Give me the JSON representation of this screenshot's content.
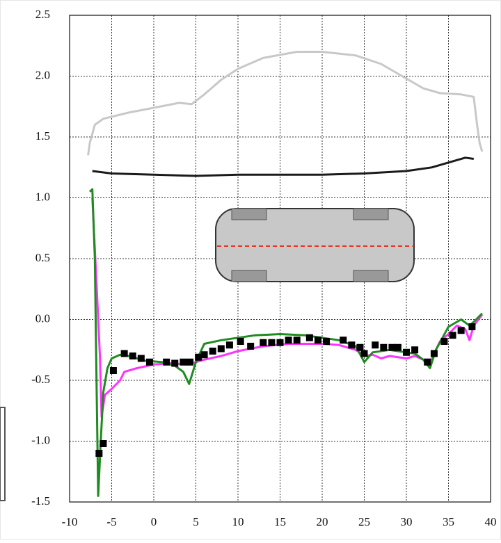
{
  "chart_data": {
    "type": "line",
    "xlim": [
      -10,
      40
    ],
    "xticks": [
      -10,
      -5,
      0,
      5,
      10,
      15,
      20,
      25,
      30,
      35,
      40
    ],
    "ylim": [
      -1.5,
      2.5
    ],
    "yticks": [
      -1.5,
      {
        "value": -1,
        "label": "-1.0"
      },
      -0.5,
      {
        "value": 0,
        "label": "0.0"
      },
      0.5,
      {
        "value": 1,
        "label": "1.0"
      },
      1.5,
      {
        "value": 2,
        "label": "2.0"
      },
      2.5
    ],
    "grid": true,
    "series": [
      {
        "color": "#c8c8c8",
        "style": "line",
        "x": [
          -7.8,
          -7.6,
          -7,
          -6,
          -3,
          0,
          3,
          4.5,
          6,
          8,
          10,
          13,
          17,
          20,
          24,
          27,
          30,
          32,
          34,
          36.5,
          38,
          38.4,
          38.7,
          39
        ],
        "values": [
          1.35,
          1.45,
          1.6,
          1.65,
          1.7,
          1.74,
          1.78,
          1.77,
          1.85,
          1.97,
          2.06,
          2.15,
          2.2,
          2.2,
          2.17,
          2.1,
          1.98,
          1.9,
          1.86,
          1.85,
          1.83,
          1.6,
          1.45,
          1.38
        ]
      },
      {
        "color": "#1a1a1a",
        "style": "line",
        "x": [
          -7.3,
          -5,
          0,
          5,
          10,
          15,
          20,
          25,
          30,
          33,
          35,
          37,
          38
        ],
        "values": [
          1.22,
          1.2,
          1.19,
          1.18,
          1.19,
          1.19,
          1.19,
          1.2,
          1.22,
          1.25,
          1.29,
          1.33,
          1.32
        ]
      },
      {
        "color": "#ff33ff",
        "style": "line",
        "x": [
          -7.3,
          -6.8,
          -6.4,
          -6.2,
          -5.8,
          -5,
          -4,
          -3.5,
          -2,
          0,
          2,
          4,
          6,
          8,
          10,
          13,
          16,
          20,
          22,
          24,
          25,
          26,
          27,
          28,
          30,
          31,
          32,
          33,
          33.5,
          34,
          35,
          36,
          37,
          37.5,
          38,
          39
        ],
        "values": [
          1.0,
          0.3,
          -0.3,
          -0.8,
          -0.62,
          -0.57,
          -0.5,
          -0.43,
          -0.4,
          -0.37,
          -0.36,
          -0.37,
          -0.33,
          -0.3,
          -0.26,
          -0.22,
          -0.2,
          -0.2,
          -0.21,
          -0.25,
          -0.3,
          -0.29,
          -0.32,
          -0.3,
          -0.32,
          -0.3,
          -0.33,
          -0.33,
          -0.25,
          -0.18,
          -0.12,
          -0.05,
          -0.08,
          -0.17,
          -0.05,
          0.04
        ]
      },
      {
        "color": "#1e8c1e",
        "style": "line",
        "x": [
          -7.6,
          -7.3,
          -7.0,
          -6.8,
          -6.6,
          -6.3,
          -6.0,
          -5.5,
          -5,
          -4,
          -3,
          -1,
          1,
          2.5,
          3.5,
          4.2,
          5,
          6,
          8,
          10,
          12,
          15,
          18,
          20,
          22,
          24,
          25,
          26,
          28,
          30,
          31,
          32,
          32.8,
          33.5,
          35,
          36.5,
          37.5,
          38,
          39
        ],
        "values": [
          1.05,
          1.07,
          0.5,
          -0.5,
          -1.45,
          -1.0,
          -0.6,
          -0.4,
          -0.32,
          -0.29,
          -0.3,
          -0.34,
          -0.35,
          -0.38,
          -0.43,
          -0.53,
          -0.35,
          -0.2,
          -0.17,
          -0.15,
          -0.13,
          -0.12,
          -0.13,
          -0.15,
          -0.17,
          -0.22,
          -0.35,
          -0.27,
          -0.25,
          -0.27,
          -0.28,
          -0.33,
          -0.4,
          -0.25,
          -0.06,
          0.0,
          -0.05,
          -0.02,
          0.05
        ]
      },
      {
        "color": "#000000",
        "style": "square",
        "x": [
          -6.5,
          -6,
          -4.8,
          -3.5,
          -2.5,
          -1.5,
          -0.5,
          1.5,
          2.5,
          3.5,
          4.3,
          5.3,
          6,
          7,
          8,
          9,
          10.3,
          11.5,
          13,
          14,
          15,
          16,
          17,
          18.5,
          19.5,
          20.5,
          22.5,
          23.5,
          24.5,
          25,
          26.3,
          27.3,
          28.3,
          29,
          30,
          31,
          32.5,
          33.3,
          34.5,
          35.5,
          36.5,
          37.8
        ],
        "values": [
          -1.1,
          -1.02,
          -0.42,
          -0.28,
          -0.3,
          -0.32,
          -0.35,
          -0.35,
          -0.36,
          -0.35,
          -0.35,
          -0.31,
          -0.29,
          -0.26,
          -0.24,
          -0.21,
          -0.18,
          -0.22,
          -0.19,
          -0.19,
          -0.19,
          -0.17,
          -0.17,
          -0.15,
          -0.17,
          -0.18,
          -0.17,
          -0.21,
          -0.23,
          -0.28,
          -0.21,
          -0.23,
          -0.23,
          -0.23,
          -0.27,
          -0.25,
          -0.35,
          -0.28,
          -0.18,
          -0.13,
          -0.09,
          -0.06
        ]
      }
    ]
  }
}
